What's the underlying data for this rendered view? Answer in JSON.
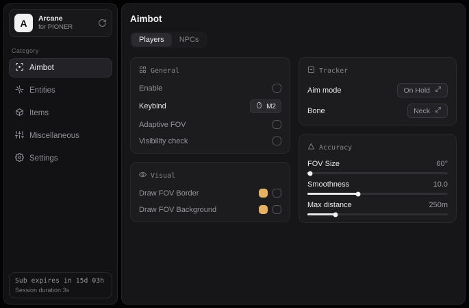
{
  "app": {
    "logo_letter": "A",
    "name": "Arcane",
    "subtitle": "for PIONER"
  },
  "sidebar": {
    "category_label": "Category",
    "items": [
      {
        "label": "Aimbot",
        "selected": true
      },
      {
        "label": "Entities",
        "selected": false
      },
      {
        "label": "Items",
        "selected": false
      },
      {
        "label": "Miscellaneous",
        "selected": false
      },
      {
        "label": "Settings",
        "selected": false
      }
    ],
    "status": {
      "line1": "Sub expires in 15d 03h",
      "line2": "Session duration 3s"
    }
  },
  "main": {
    "title": "Aimbot",
    "tabs": [
      {
        "label": "Players",
        "selected": true
      },
      {
        "label": "NPCs",
        "selected": false
      }
    ],
    "cards": {
      "general": {
        "title": "General",
        "rows": [
          {
            "label": "Enable",
            "control": "checkbox",
            "checked": false
          },
          {
            "label": "Keybind",
            "control": "keybind",
            "value": "M2"
          },
          {
            "label": "Adaptive FOV",
            "control": "checkbox",
            "checked": false
          },
          {
            "label": "Visibility check",
            "control": "checkbox",
            "checked": false
          }
        ]
      },
      "visual": {
        "title": "Visual",
        "rows": [
          {
            "label": "Draw FOV Border",
            "control": "color+checkbox",
            "color": "#e4b266",
            "checked": false
          },
          {
            "label": "Draw FOV Background",
            "control": "color+checkbox",
            "color": "#e4b266",
            "checked": false
          }
        ]
      },
      "tracking": {
        "title": "Tracker",
        "rows": [
          {
            "label": "Aim mode",
            "control": "select",
            "value": "On Hold"
          },
          {
            "label": "Bone",
            "control": "select",
            "value": "Neck"
          }
        ]
      },
      "accuracy": {
        "title": "Accuracy",
        "sliders": [
          {
            "label": "FOV Size",
            "value": "60°",
            "percent": 2
          },
          {
            "label": "Smoothness",
            "value": "10.0",
            "percent": 36
          },
          {
            "label": "Max distance",
            "value": "250m",
            "percent": 20
          }
        ]
      }
    }
  },
  "colors": {
    "accent_swatch": "#e4b266",
    "panel_bg": "#161618",
    "card_bg": "#1c1c1f",
    "selected_bg": "#232327"
  }
}
